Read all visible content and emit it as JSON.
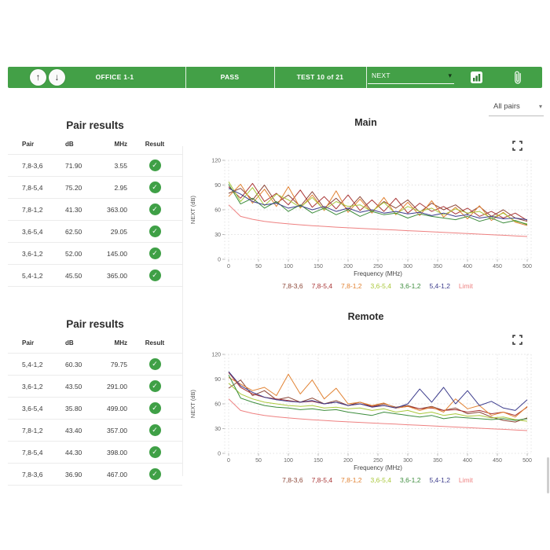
{
  "icons": {
    "nav_up": "↑",
    "nav_down": "↓",
    "dropdown_caret": "▾",
    "check": "✓"
  },
  "colors": {
    "brand_green": "#43a047",
    "pass_green": "#3fa046",
    "limit_red": "#ee8080"
  },
  "header": {
    "location": "OFFICE 1-1",
    "status": "PASS",
    "test_counter": "TEST 10 of 21",
    "measurement_select": {
      "value": "NEXT"
    }
  },
  "pairs_filter": {
    "value": "All pairs"
  },
  "tables": [
    {
      "title": "Pair results",
      "columns": [
        "Pair",
        "dB",
        "MHz",
        "Result"
      ],
      "rows": [
        {
          "pair": "7,8-3,6",
          "db": "71.90",
          "mhz": "3.55",
          "result": "pass"
        },
        {
          "pair": "7,8-5,4",
          "db": "75.20",
          "mhz": "2.95",
          "result": "pass"
        },
        {
          "pair": "7,8-1,2",
          "db": "41.30",
          "mhz": "363.00",
          "result": "pass"
        },
        {
          "pair": "3,6-5,4",
          "db": "62.50",
          "mhz": "29.05",
          "result": "pass"
        },
        {
          "pair": "3,6-1,2",
          "db": "52.00",
          "mhz": "145.00",
          "result": "pass"
        },
        {
          "pair": "5,4-1,2",
          "db": "45.50",
          "mhz": "365.00",
          "result": "pass"
        }
      ]
    },
    {
      "title": "Pair results",
      "columns": [
        "Pair",
        "dB",
        "MHz",
        "Result"
      ],
      "rows": [
        {
          "pair": "5,4-1,2",
          "db": "60.30",
          "mhz": "79.75",
          "result": "pass"
        },
        {
          "pair": "3,6-1,2",
          "db": "43.50",
          "mhz": "291.00",
          "result": "pass"
        },
        {
          "pair": "3,6-5,4",
          "db": "35.80",
          "mhz": "499.00",
          "result": "pass"
        },
        {
          "pair": "7,8-1,2",
          "db": "43.40",
          "mhz": "357.00",
          "result": "pass"
        },
        {
          "pair": "7,8-5,4",
          "db": "44.30",
          "mhz": "398.00",
          "result": "pass"
        },
        {
          "pair": "7,8-3,6",
          "db": "36.90",
          "mhz": "467.00",
          "result": "pass"
        }
      ]
    }
  ],
  "chart_data": [
    {
      "type": "line",
      "title": "Main",
      "xlabel": "Frequency (MHz)",
      "ylabel": "NEXT (dB)",
      "xlim": [
        0,
        500
      ],
      "ylim": [
        0,
        120
      ],
      "xticks": [
        0,
        50,
        100,
        150,
        200,
        250,
        300,
        350,
        400,
        450,
        500
      ],
      "yticks": [
        0,
        30,
        60,
        90,
        120
      ],
      "grid": true,
      "legend_position": "bottom",
      "x": [
        0,
        20,
        40,
        60,
        80,
        100,
        120,
        140,
        160,
        180,
        200,
        220,
        240,
        260,
        280,
        300,
        320,
        340,
        360,
        380,
        400,
        420,
        440,
        460,
        480,
        500
      ],
      "series": [
        {
          "name": "7,8-3,6",
          "color": "#8c4637",
          "values": [
            80,
            86,
            72,
            90,
            68,
            78,
            64,
            82,
            62,
            74,
            60,
            76,
            58,
            70,
            62,
            72,
            57,
            68,
            60,
            66,
            55,
            64,
            52,
            60,
            50,
            46
          ]
        },
        {
          "name": "7,8-5,4",
          "color": "#a93636",
          "values": [
            88,
            74,
            92,
            70,
            80,
            66,
            84,
            63,
            76,
            61,
            78,
            59,
            72,
            58,
            74,
            56,
            68,
            58,
            64,
            55,
            62,
            52,
            58,
            50,
            56,
            47
          ]
        },
        {
          "name": "7,8-1,2",
          "color": "#e18232",
          "values": [
            76,
            91,
            68,
            85,
            64,
            88,
            62,
            78,
            59,
            83,
            57,
            73,
            56,
            75,
            54,
            69,
            53,
            71,
            51,
            63,
            49,
            65,
            47,
            57,
            45,
            41
          ]
        },
        {
          "name": "3,6-5,4",
          "color": "#aac83c",
          "values": [
            94,
            70,
            87,
            65,
            79,
            72,
            63,
            75,
            60,
            70,
            64,
            66,
            58,
            69,
            55,
            64,
            58,
            62,
            54,
            61,
            56,
            58,
            50,
            56,
            46,
            43
          ]
        },
        {
          "name": "3,6-1,2",
          "color": "#3c8c3c",
          "values": [
            91,
            67,
            74,
            62,
            70,
            58,
            66,
            56,
            62,
            54,
            60,
            52,
            58,
            54,
            56,
            50,
            55,
            52,
            50,
            48,
            52,
            46,
            50,
            44,
            47,
            42
          ]
        },
        {
          "name": "5,4-1,2",
          "color": "#3c3c8c",
          "values": [
            86,
            79,
            70,
            66,
            68,
            62,
            65,
            60,
            64,
            58,
            62,
            57,
            60,
            56,
            58,
            55,
            57,
            53,
            56,
            52,
            54,
            50,
            52,
            49,
            50,
            48
          ]
        },
        {
          "name": "Limit",
          "color": "#ee8080",
          "values": [
            66,
            52,
            48.5,
            46,
            44.3,
            43,
            41.8,
            40.8,
            39.9,
            39,
            38.2,
            37.5,
            36.8,
            36.1,
            35.4,
            34.7,
            34,
            33.3,
            32.6,
            31.9,
            31.2,
            30.5,
            29.8,
            29.1,
            28.4,
            27.6
          ]
        }
      ]
    },
    {
      "type": "line",
      "title": "Remote",
      "xlabel": "Frequency (MHz)",
      "ylabel": "NEXT (dB)",
      "xlim": [
        0,
        500
      ],
      "ylim": [
        0,
        120
      ],
      "xticks": [
        0,
        50,
        100,
        150,
        200,
        250,
        300,
        350,
        400,
        450,
        500
      ],
      "yticks": [
        0,
        30,
        60,
        90,
        120
      ],
      "grid": true,
      "legend_position": "bottom",
      "x": [
        0,
        20,
        40,
        60,
        80,
        100,
        120,
        140,
        160,
        180,
        200,
        220,
        240,
        260,
        280,
        300,
        320,
        340,
        360,
        380,
        400,
        420,
        440,
        460,
        480,
        500
      ],
      "series": [
        {
          "name": "7,8-3,6",
          "color": "#8c4637",
          "values": [
            79,
            89,
            70,
            76,
            65,
            68,
            62,
            67,
            60,
            64,
            58,
            62,
            57,
            60,
            56,
            58,
            54,
            57,
            52,
            55,
            48,
            50,
            44,
            40,
            38,
            43
          ]
        },
        {
          "name": "7,8-5,4",
          "color": "#a93636",
          "values": [
            98,
            80,
            72,
            68,
            66,
            64,
            62,
            63,
            60,
            62,
            58,
            60,
            57,
            58,
            55,
            57,
            54,
            55,
            52,
            53,
            50,
            52,
            48,
            50,
            46,
            56
          ]
        },
        {
          "name": "7,8-1,2",
          "color": "#e18232",
          "values": [
            92,
            84,
            76,
            80,
            70,
            96,
            72,
            89,
            66,
            79,
            60,
            62,
            58,
            61,
            55,
            57,
            52,
            56,
            50,
            66,
            54,
            58,
            46,
            50,
            44,
            57
          ]
        },
        {
          "name": "3,6-5,4",
          "color": "#aac83c",
          "values": [
            85,
            72,
            66,
            62,
            60,
            58,
            57,
            58,
            55,
            56,
            54,
            55,
            52,
            54,
            50,
            52,
            48,
            50,
            46,
            48,
            45,
            46,
            43,
            44,
            41,
            39
          ]
        },
        {
          "name": "3,6-1,2",
          "color": "#3c8c3c",
          "values": [
            95,
            67,
            62,
            58,
            56,
            55,
            53,
            54,
            52,
            53,
            50,
            48,
            46,
            50,
            48,
            46,
            44,
            46,
            42,
            44,
            43,
            42,
            41,
            42,
            40,
            42
          ]
        },
        {
          "name": "5,4-1,2",
          "color": "#3c3c8c",
          "values": [
            99,
            82,
            74,
            68,
            65,
            63,
            62,
            64,
            60,
            62,
            58,
            60,
            56,
            58,
            55,
            60,
            78,
            62,
            80,
            60,
            76,
            58,
            63,
            55,
            52,
            65
          ]
        },
        {
          "name": "Limit",
          "color": "#ee8080",
          "values": [
            66,
            52,
            48.5,
            46,
            44.3,
            43,
            41.8,
            40.8,
            39.9,
            39,
            38.2,
            37.5,
            36.8,
            36.1,
            35.4,
            34.7,
            34,
            33.3,
            32.6,
            31.9,
            31.2,
            30.5,
            29.8,
            29.1,
            28.4,
            27.6
          ]
        }
      ]
    }
  ]
}
